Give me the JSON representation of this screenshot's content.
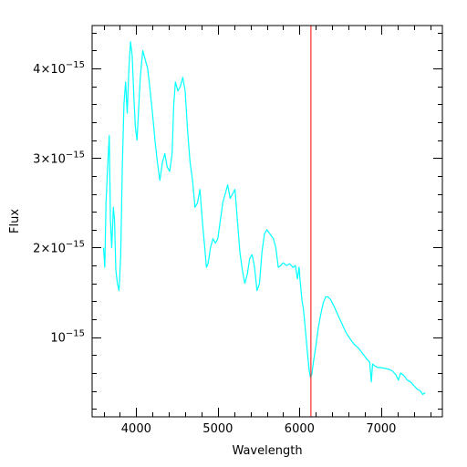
{
  "chart_data": {
    "type": "line",
    "xlabel": "Wavelength",
    "ylabel": "Flux",
    "xlim": [
      3460,
      7750
    ],
    "ylim": [
      1.1e-16,
      4.48e-15
    ],
    "x_ticks_major": [
      4000,
      5000,
      6000,
      7000
    ],
    "x_tick_labels": [
      "4000",
      "5000",
      "6000",
      "7000"
    ],
    "y_ticks_major": [
      1e-15,
      2e-15,
      3e-15,
      4e-15
    ],
    "y_tick_labels": [
      {
        "mantissa": "",
        "base": "10",
        "exp": "−15"
      },
      {
        "mantissa": "2×",
        "base": "10",
        "exp": "−15"
      },
      {
        "mantissa": "3×",
        "base": "10",
        "exp": "−15"
      },
      {
        "mantissa": "4×",
        "base": "10",
        "exp": "−15"
      }
    ],
    "grid": false,
    "marker_line": {
      "x": 6140,
      "color": "#ff0000"
    },
    "series": [
      {
        "color": "#00ffff",
        "points": [
          [
            3600,
            2e-15
          ],
          [
            3615,
            1.78e-15
          ],
          [
            3630,
            2.5e-15
          ],
          [
            3650,
            2.9e-15
          ],
          [
            3670,
            3.25e-15
          ],
          [
            3685,
            2.3e-15
          ],
          [
            3700,
            2e-15
          ],
          [
            3720,
            2.45e-15
          ],
          [
            3735,
            2.3e-15
          ],
          [
            3750,
            1.75e-15
          ],
          [
            3770,
            1.6e-15
          ],
          [
            3790,
            1.52e-15
          ],
          [
            3810,
            1.9e-15
          ],
          [
            3830,
            2.9e-15
          ],
          [
            3850,
            3.6e-15
          ],
          [
            3870,
            3.85e-15
          ],
          [
            3890,
            3.5e-15
          ],
          [
            3910,
            4e-15
          ],
          [
            3930,
            4.3e-15
          ],
          [
            3950,
            4.15e-15
          ],
          [
            3970,
            3.7e-15
          ],
          [
            3990,
            3.35e-15
          ],
          [
            4010,
            3.2e-15
          ],
          [
            4030,
            3.55e-15
          ],
          [
            4050,
            3.9e-15
          ],
          [
            4080,
            4.2e-15
          ],
          [
            4110,
            4.1e-15
          ],
          [
            4140,
            4e-15
          ],
          [
            4170,
            3.75e-15
          ],
          [
            4200,
            3.5e-15
          ],
          [
            4230,
            3.2e-15
          ],
          [
            4260,
            2.95e-15
          ],
          [
            4290,
            2.75e-15
          ],
          [
            4320,
            2.95e-15
          ],
          [
            4350,
            3.05e-15
          ],
          [
            4380,
            2.9e-15
          ],
          [
            4410,
            2.85e-15
          ],
          [
            4440,
            3.05e-15
          ],
          [
            4460,
            3.6e-15
          ],
          [
            4480,
            3.85e-15
          ],
          [
            4510,
            3.75e-15
          ],
          [
            4540,
            3.8e-15
          ],
          [
            4570,
            3.9e-15
          ],
          [
            4600,
            3.75e-15
          ],
          [
            4630,
            3.3e-15
          ],
          [
            4660,
            2.95e-15
          ],
          [
            4690,
            2.75e-15
          ],
          [
            4720,
            2.45e-15
          ],
          [
            4750,
            2.5e-15
          ],
          [
            4780,
            2.65e-15
          ],
          [
            4810,
            2.3e-15
          ],
          [
            4840,
            2e-15
          ],
          [
            4860,
            1.78e-15
          ],
          [
            4880,
            1.82e-15
          ],
          [
            4910,
            2e-15
          ],
          [
            4940,
            2.1e-15
          ],
          [
            4970,
            2.05e-15
          ],
          [
            5000,
            2.1e-15
          ],
          [
            5030,
            2.3e-15
          ],
          [
            5060,
            2.5e-15
          ],
          [
            5090,
            2.6e-15
          ],
          [
            5120,
            2.7e-15
          ],
          [
            5150,
            2.55e-15
          ],
          [
            5180,
            2.6e-15
          ],
          [
            5210,
            2.65e-15
          ],
          [
            5240,
            2.3e-15
          ],
          [
            5270,
            1.95e-15
          ],
          [
            5300,
            1.75e-15
          ],
          [
            5330,
            1.6e-15
          ],
          [
            5360,
            1.7e-15
          ],
          [
            5390,
            1.88e-15
          ],
          [
            5420,
            1.92e-15
          ],
          [
            5450,
            1.78e-15
          ],
          [
            5480,
            1.52e-15
          ],
          [
            5510,
            1.6e-15
          ],
          [
            5540,
            1.95e-15
          ],
          [
            5570,
            2.15e-15
          ],
          [
            5600,
            2.2e-15
          ],
          [
            5640,
            2.15e-15
          ],
          [
            5680,
            2.1e-15
          ],
          [
            5710,
            2e-15
          ],
          [
            5740,
            1.78e-15
          ],
          [
            5770,
            1.8e-15
          ],
          [
            5800,
            1.83e-15
          ],
          [
            5840,
            1.8e-15
          ],
          [
            5880,
            1.82e-15
          ],
          [
            5920,
            1.78e-15
          ],
          [
            5950,
            1.8e-15
          ],
          [
            5975,
            1.65e-15
          ],
          [
            5995,
            1.78e-15
          ],
          [
            6010,
            1.6e-15
          ],
          [
            6030,
            1.42e-15
          ],
          [
            6050,
            1.3e-15
          ],
          [
            6075,
            1.05e-15
          ],
          [
            6100,
            8e-16
          ],
          [
            6120,
            6.2e-16
          ],
          [
            6135,
            5.5e-16
          ],
          [
            6150,
            5.8e-16
          ],
          [
            6170,
            7.2e-16
          ],
          [
            6200,
            9e-16
          ],
          [
            6230,
            1.1e-15
          ],
          [
            6260,
            1.25e-15
          ],
          [
            6290,
            1.38e-15
          ],
          [
            6320,
            1.45e-15
          ],
          [
            6350,
            1.45e-15
          ],
          [
            6380,
            1.42e-15
          ],
          [
            6420,
            1.35e-15
          ],
          [
            6470,
            1.25e-15
          ],
          [
            6520,
            1.15e-15
          ],
          [
            6570,
            1.05e-15
          ],
          [
            6620,
            9.8e-16
          ],
          [
            6670,
            9.2e-16
          ],
          [
            6720,
            8.8e-16
          ],
          [
            6770,
            8.2e-16
          ],
          [
            6820,
            7.6e-16
          ],
          [
            6860,
            7.2e-16
          ],
          [
            6880,
            5e-16
          ],
          [
            6895,
            7e-16
          ],
          [
            6920,
            6.8e-16
          ],
          [
            6960,
            6.6e-16
          ],
          [
            7000,
            6.6e-16
          ],
          [
            7050,
            6.5e-16
          ],
          [
            7100,
            6.4e-16
          ],
          [
            7140,
            6.2e-16
          ],
          [
            7180,
            5.8e-16
          ],
          [
            7210,
            5.2e-16
          ],
          [
            7240,
            6e-16
          ],
          [
            7280,
            5.7e-16
          ],
          [
            7320,
            5.2e-16
          ],
          [
            7360,
            5e-16
          ],
          [
            7400,
            4.6e-16
          ],
          [
            7440,
            4.2e-16
          ],
          [
            7480,
            4e-16
          ],
          [
            7510,
            3.6e-16
          ],
          [
            7540,
            3.8e-16
          ]
        ]
      }
    ]
  }
}
